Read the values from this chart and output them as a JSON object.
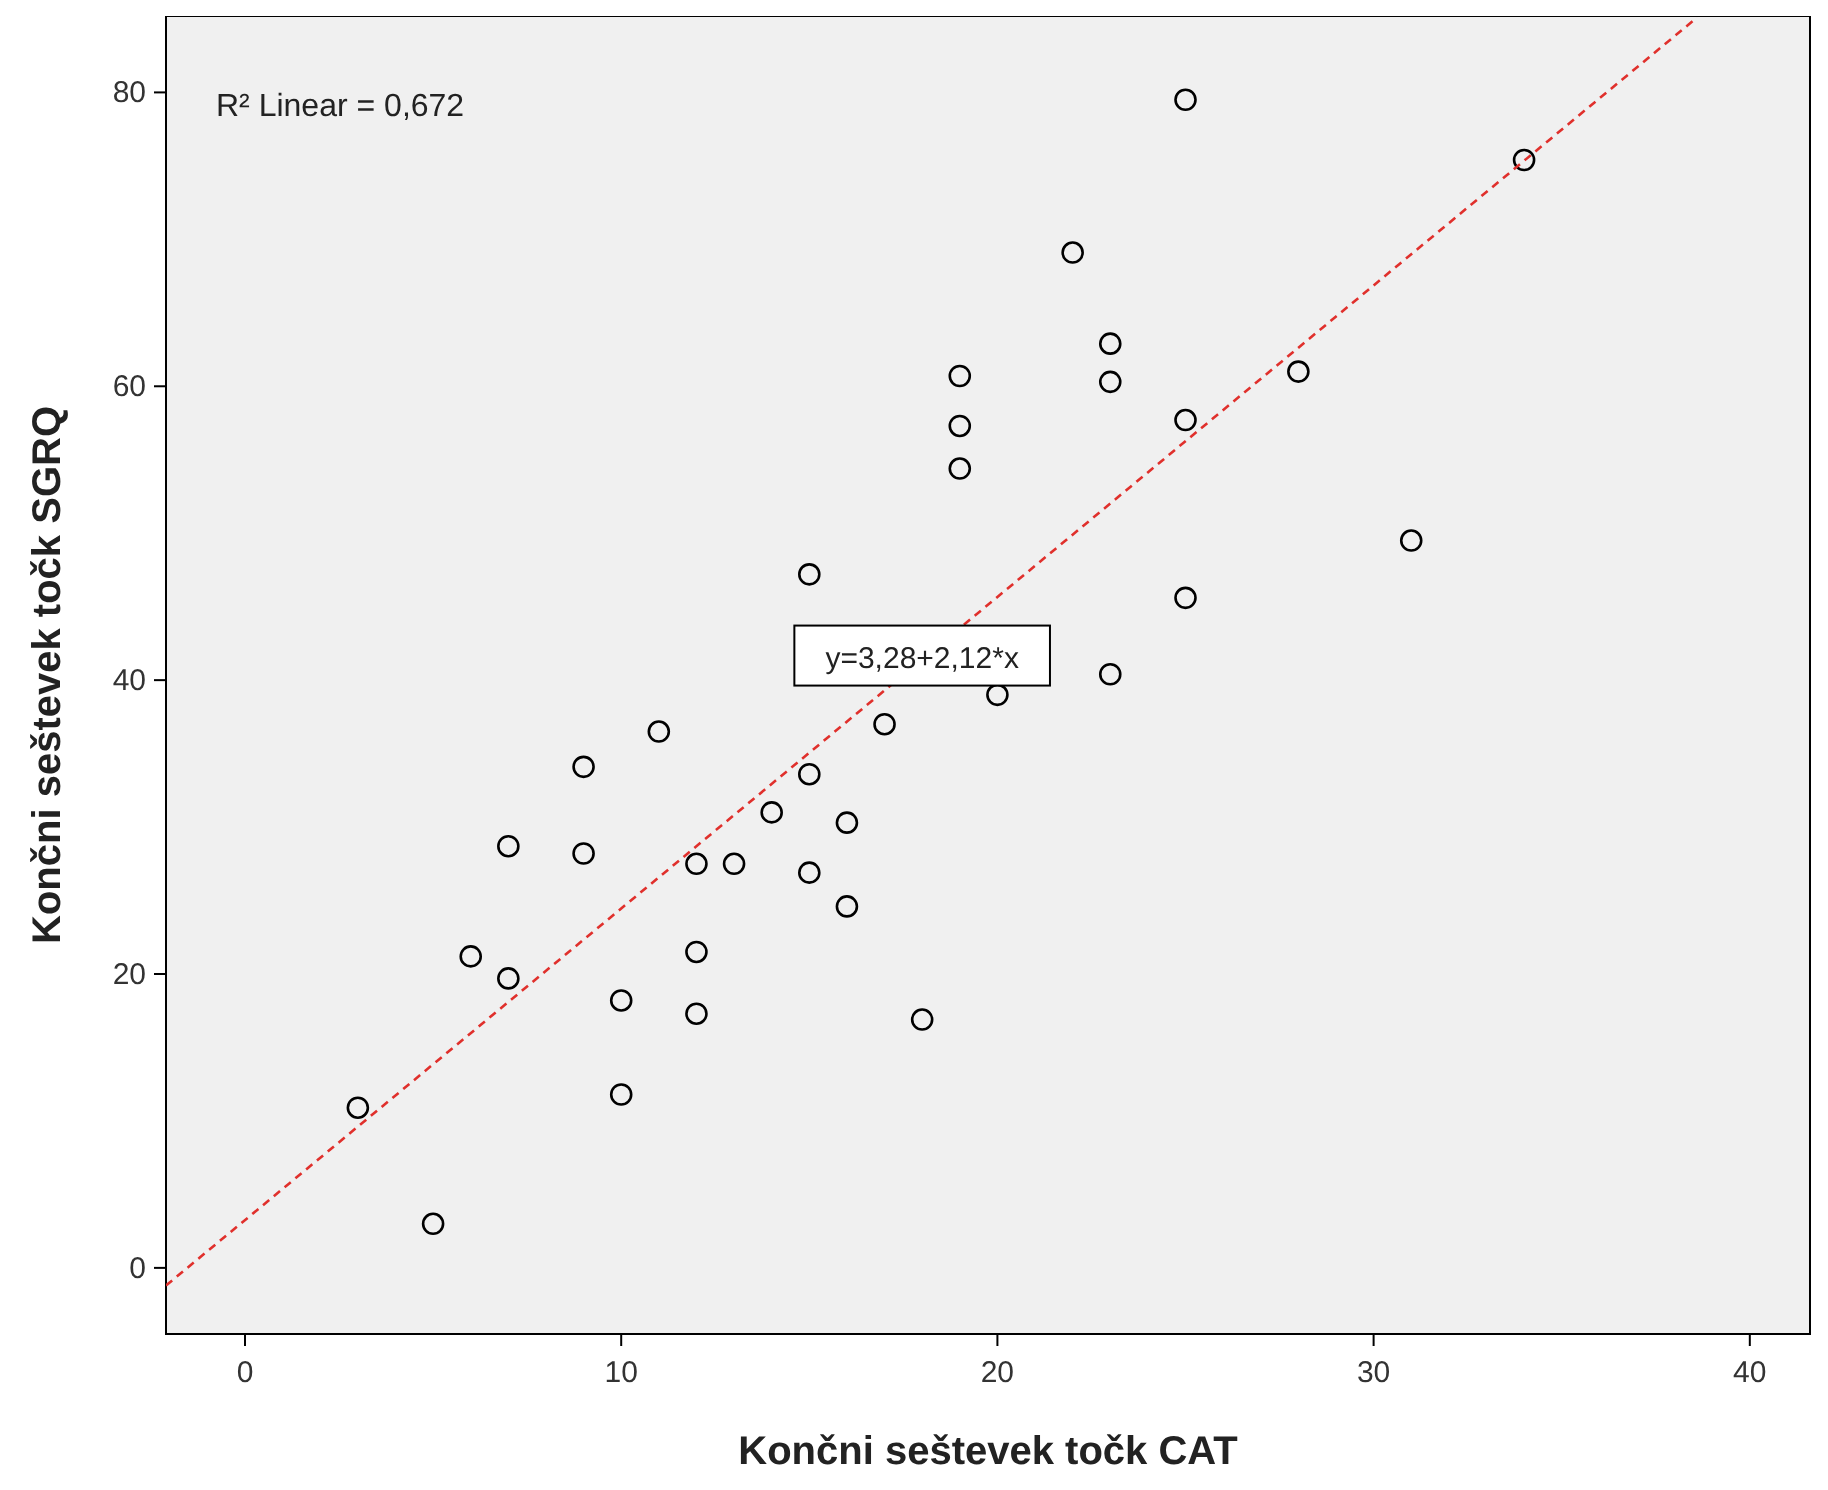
{
  "chart_data": {
    "type": "scatter",
    "xlabel": "Končni seštevek točk CAT",
    "ylabel": "Končni seštevek točk SGRQ",
    "xlim": [
      -2.1,
      41.6
    ],
    "ylim": [
      -4.5,
      85.2
    ],
    "xticks": [
      0,
      10,
      20,
      30,
      40
    ],
    "yticks": [
      0,
      20,
      40,
      60,
      80
    ],
    "grid": false,
    "series": [
      {
        "marker": "circle",
        "color": "#000000",
        "x": [
          3,
          5,
          6,
          7,
          7,
          9,
          9,
          10,
          10,
          11,
          12,
          12,
          12,
          13,
          14,
          15,
          15,
          15,
          16,
          16,
          17,
          18,
          19,
          19,
          19,
          20,
          22,
          23,
          23,
          23,
          25,
          25,
          25,
          28,
          31,
          34
        ],
        "values": [
          10.9,
          3.0,
          21.2,
          28.7,
          19.7,
          34.1,
          28.2,
          18.2,
          11.8,
          36.5,
          27.5,
          21.5,
          17.3,
          27.5,
          31.0,
          47.2,
          33.6,
          26.9,
          30.3,
          24.6,
          37.0,
          16.9,
          60.7,
          57.3,
          54.4,
          39.0,
          69.1,
          62.9,
          60.3,
          40.4,
          79.5,
          57.7,
          45.6,
          61.0,
          49.5,
          75.4
        ]
      },
      {
        "type": "line",
        "line_style": "dashed",
        "color": "#e0302c",
        "x": [
          -2.1,
          38.6
        ],
        "values": [
          -1.2,
          85.1
        ]
      }
    ],
    "annotations": [
      "R² Linear = 0,672",
      {
        "text": "y=3,28+2,12*x",
        "x": 18,
        "y": 41.4
      }
    ]
  }
}
